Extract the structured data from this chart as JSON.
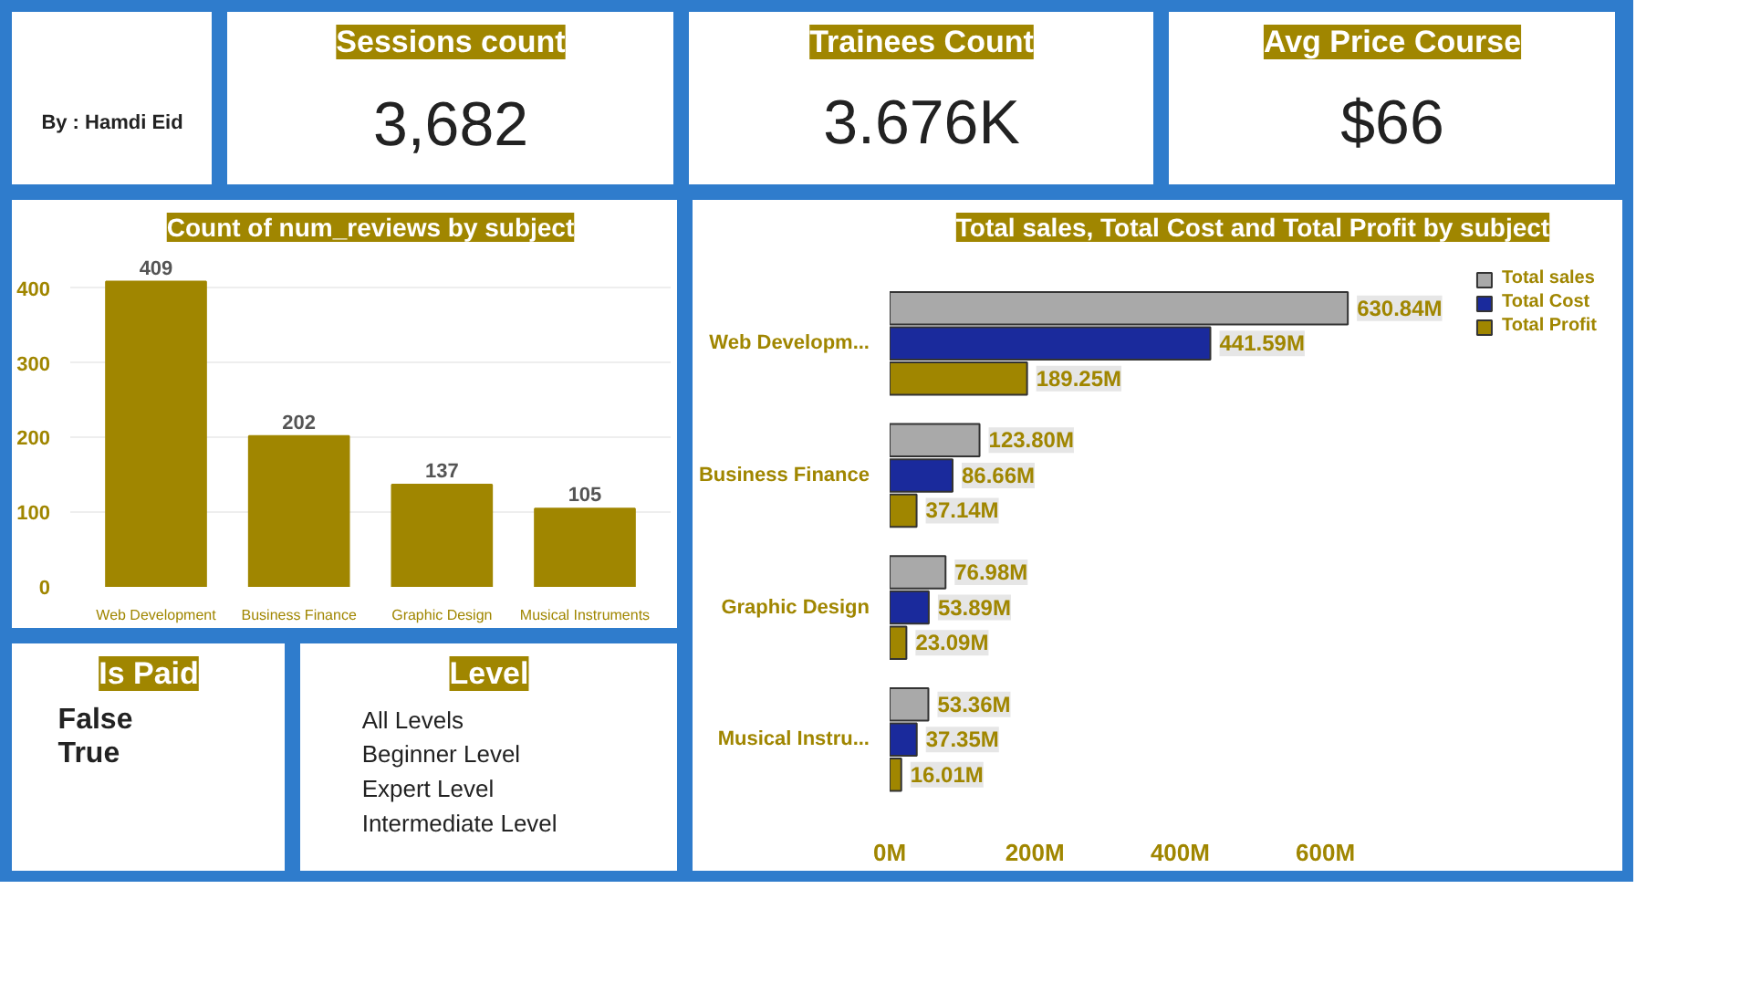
{
  "chart_data": [
    {
      "type": "other",
      "annotations": [
        "By : Hamdi Eid"
      ]
    },
    {
      "type": "other",
      "title": "Sessions count",
      "annotations": [
        "3,682"
      ]
    },
    {
      "type": "other",
      "title": "Trainees Count",
      "annotations": [
        "3.676K"
      ]
    },
    {
      "type": "other",
      "title": "Avg Price Course",
      "annotations": [
        "$66"
      ]
    },
    {
      "type": "bar",
      "title": "Count of num_reviews by subject",
      "categories": [
        "Web Development",
        "Business Finance",
        "Graphic Design",
        "Musical Instruments"
      ],
      "values": [
        409,
        202,
        137,
        105
      ],
      "color": "#a08600",
      "ylim": [
        0,
        450
      ],
      "yticks": [
        0,
        100,
        200,
        300,
        400
      ],
      "grid": "y",
      "data_labels": true
    },
    {
      "type": "bar",
      "orientation": "horizontal",
      "title": "Total sales, Total Cost and Total Profit by subject",
      "categories": [
        "Web Developm...",
        "Business Finance",
        "Graphic Design",
        "Musical Instru..."
      ],
      "xlim": [
        0,
        1000
      ],
      "xticks": [
        {
          "value": 0,
          "label": "0M"
        },
        {
          "value": 200,
          "label": "200M"
        },
        {
          "value": 400,
          "label": "400M"
        },
        {
          "value": 600,
          "label": "600M"
        }
      ],
      "legend": "top right",
      "series": [
        {
          "name": "Total sales",
          "color": "#a9a9a9",
          "values": [
            630.84,
            123.8,
            76.98,
            53.36
          ],
          "value_labels": [
            "630.84M",
            "123.80M",
            "76.98M",
            "53.36M"
          ]
        },
        {
          "name": "Total Cost",
          "color": "#1a2a9c",
          "values": [
            441.59,
            86.66,
            53.89,
            37.35
          ],
          "value_labels": [
            "441.59M",
            "86.66M",
            "53.89M",
            "37.35M"
          ]
        },
        {
          "name": "Total Profit",
          "color": "#a08600",
          "values": [
            189.25,
            37.14,
            23.09,
            16.01
          ],
          "value_labels": [
            "189.25M",
            "37.14M",
            "23.09M",
            "16.01M"
          ]
        }
      ]
    },
    {
      "type": "other",
      "title": "Is Paid",
      "annotations": [
        "False",
        "True"
      ]
    },
    {
      "type": "other",
      "title": "Level",
      "annotations": [
        "All Levels",
        "Beginner Level",
        "Expert Level",
        "Intermediate Level"
      ]
    }
  ]
}
